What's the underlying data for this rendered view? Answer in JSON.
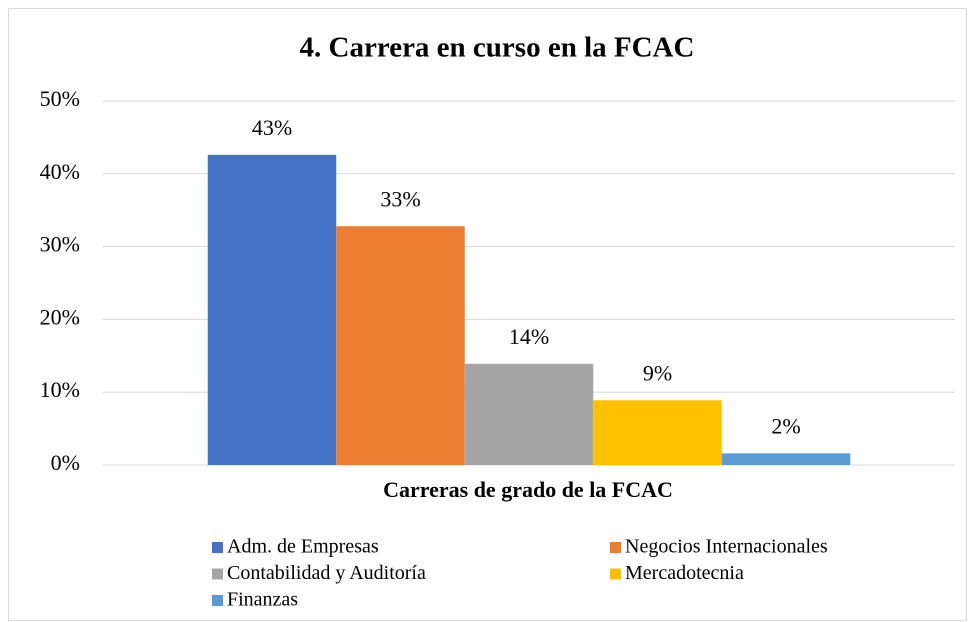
{
  "chart_data": {
    "type": "bar",
    "title": "4. Carrera en curso en la FCAC",
    "x_label": "Carreras de grado de la FCAC",
    "ylim": [
      0,
      50
    ],
    "yticks": [
      {
        "value": 0,
        "label": "0%"
      },
      {
        "value": 10,
        "label": "10%"
      },
      {
        "value": 20,
        "label": "20%"
      },
      {
        "value": 30,
        "label": "30%"
      },
      {
        "value": 40,
        "label": "40%"
      },
      {
        "value": 50,
        "label": "50%"
      }
    ],
    "grid": true,
    "legend": "bottom",
    "series": [
      {
        "name": "Adm. de Empresas",
        "color": "#4472c4",
        "values": [
          42.6
        ],
        "value_labels": [
          "43%"
        ]
      },
      {
        "name": "Negocios Internacionales",
        "color": "#ed7d31",
        "values": [
          32.8
        ],
        "value_labels": [
          "33%"
        ]
      },
      {
        "name": "Contabilidad y Auditoría",
        "color": "#a5a5a5",
        "values": [
          13.9
        ],
        "value_labels": [
          "14%"
        ]
      },
      {
        "name": "Mercadotecnia",
        "color": "#ffc000",
        "values": [
          8.9
        ],
        "value_labels": [
          "9%"
        ]
      },
      {
        "name": "Finanzas",
        "color": "#5b9bd5",
        "values": [
          1.6
        ],
        "value_labels": [
          "2%"
        ]
      }
    ]
  }
}
